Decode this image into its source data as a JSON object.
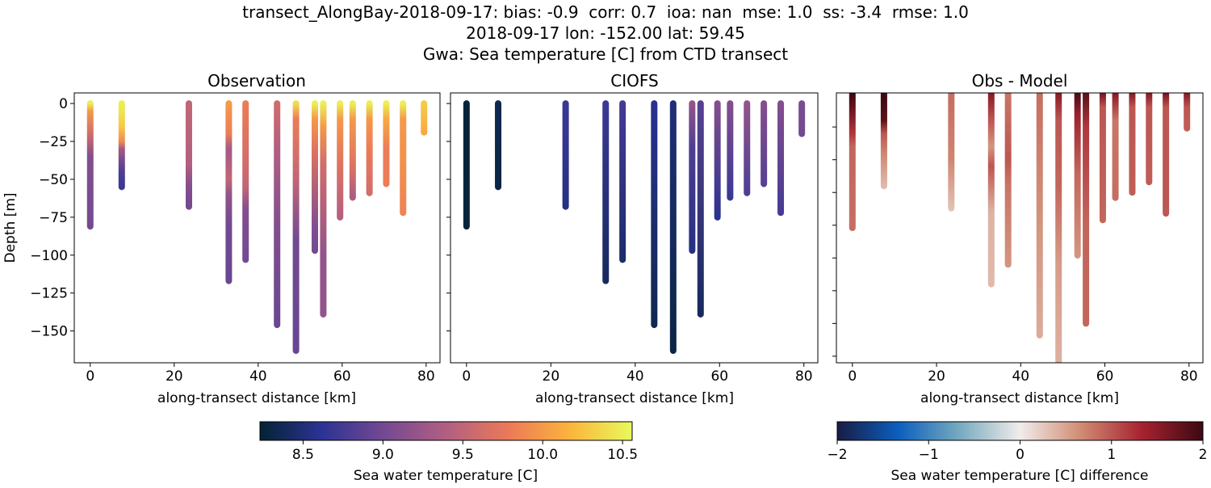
{
  "title_lines": [
    "transect_AlongBay-2018-09-17: bias: -0.9  corr: 0.7  ioa: nan  mse: 1.0  ss: -3.4  rmse: 1.0",
    "2018-09-17 lon: -152.00 lat: 59.45",
    "Gwa: Sea temperature [C] from CTD transect"
  ],
  "chart_data": [
    {
      "type": "scatter",
      "title": "Observation",
      "xlabel": "along-transect distance [km]",
      "ylabel": "Depth [m]",
      "xlim": [
        -3.8,
        83.3
      ],
      "ylim": [
        -171,
        7
      ],
      "xticks": [
        0,
        20,
        40,
        60,
        80
      ],
      "yticks": [
        0,
        -25,
        -50,
        -75,
        -100,
        -125,
        -150
      ],
      "colormap": "thermal",
      "clim": [
        8.23,
        10.56
      ],
      "casts": [
        {
          "x": 0,
          "profile": [
            [
              0,
              10.5
            ],
            [
              -5,
              10.0
            ],
            [
              -20,
              9.6
            ],
            [
              -35,
              9.1
            ],
            [
              -81,
              9.0
            ]
          ]
        },
        {
          "x": 7.5,
          "profile": [
            [
              0,
              10.5
            ],
            [
              -15,
              10.3
            ],
            [
              -25,
              9.9
            ],
            [
              -30,
              9.3
            ],
            [
              -45,
              8.8
            ],
            [
              -55,
              8.7
            ]
          ]
        },
        {
          "x": 23.5,
          "profile": [
            [
              0,
              9.5
            ],
            [
              -40,
              9.4
            ],
            [
              -55,
              9.1
            ],
            [
              -68,
              9.0
            ]
          ]
        },
        {
          "x": 33,
          "profile": [
            [
              0,
              10.0
            ],
            [
              -20,
              9.8
            ],
            [
              -30,
              9.3
            ],
            [
              -50,
              9.5
            ],
            [
              -60,
              9.2
            ],
            [
              -80,
              9.0
            ],
            [
              -117,
              8.95
            ]
          ]
        },
        {
          "x": 37,
          "profile": [
            [
              0,
              9.8
            ],
            [
              -40,
              9.6
            ],
            [
              -55,
              9.5
            ],
            [
              -70,
              9.1
            ],
            [
              -103,
              9.0
            ]
          ]
        },
        {
          "x": 44.5,
          "profile": [
            [
              0,
              9.6
            ],
            [
              -30,
              9.4
            ],
            [
              -80,
              9.1
            ],
            [
              -146,
              8.95
            ]
          ]
        },
        {
          "x": 49,
          "profile": [
            [
              0,
              10.4
            ],
            [
              -10,
              9.8
            ],
            [
              -50,
              9.5
            ],
            [
              -90,
              9.0
            ],
            [
              -163,
              8.95
            ]
          ]
        },
        {
          "x": 53.5,
          "profile": [
            [
              0,
              10.5
            ],
            [
              -10,
              10.0
            ],
            [
              -30,
              9.7
            ],
            [
              -80,
              9.1
            ],
            [
              -97,
              9.0
            ]
          ]
        },
        {
          "x": 55.5,
          "profile": [
            [
              0,
              10.5
            ],
            [
              -15,
              10.0
            ],
            [
              -40,
              9.6
            ],
            [
              -100,
              9.2
            ],
            [
              -139,
              9.2
            ]
          ]
        },
        {
          "x": 59.5,
          "profile": [
            [
              0,
              10.5
            ],
            [
              -10,
              10.0
            ],
            [
              -40,
              9.7
            ],
            [
              -75,
              9.4
            ]
          ]
        },
        {
          "x": 62.5,
          "profile": [
            [
              0,
              10.5
            ],
            [
              -10,
              10.0
            ],
            [
              -40,
              9.7
            ],
            [
              -62,
              9.35
            ]
          ]
        },
        {
          "x": 66.5,
          "profile": [
            [
              0,
              10.5
            ],
            [
              -10,
              10.0
            ],
            [
              -30,
              9.8
            ],
            [
              -59,
              9.6
            ]
          ]
        },
        {
          "x": 70.5,
          "profile": [
            [
              0,
              10.5
            ],
            [
              -10,
              10.1
            ],
            [
              -30,
              9.8
            ],
            [
              -53,
              9.8
            ]
          ]
        },
        {
          "x": 74.5,
          "profile": [
            [
              0,
              10.5
            ],
            [
              -10,
              10.0
            ],
            [
              -72,
              9.85
            ]
          ]
        },
        {
          "x": 79.5,
          "profile": [
            [
              0,
              10.3
            ],
            [
              -19,
              10.1
            ]
          ]
        }
      ]
    },
    {
      "type": "scatter",
      "title": "CIOFS",
      "xlabel": "along-transect distance [km]",
      "xlim": [
        -3.8,
        83.3
      ],
      "ylim": [
        -171,
        7
      ],
      "xticks": [
        0,
        20,
        40,
        60,
        80
      ],
      "yticks": [
        0,
        -25,
        -50,
        -75,
        -100,
        -125,
        -150
      ],
      "colormap": "thermal",
      "clim": [
        8.23,
        10.56
      ],
      "casts": [
        {
          "x": 0,
          "profile": [
            [
              0,
              8.25
            ],
            [
              -81,
              8.25
            ]
          ]
        },
        {
          "x": 7.5,
          "profile": [
            [
              0,
              8.35
            ],
            [
              -55,
              8.3
            ]
          ]
        },
        {
          "x": 23.5,
          "profile": [
            [
              0,
              8.7
            ],
            [
              -68,
              8.55
            ]
          ]
        },
        {
          "x": 33,
          "profile": [
            [
              0,
              8.7
            ],
            [
              -117,
              8.4
            ]
          ]
        },
        {
          "x": 37,
          "profile": [
            [
              0,
              8.75
            ],
            [
              -103,
              8.45
            ]
          ]
        },
        {
          "x": 44.5,
          "profile": [
            [
              0,
              8.6
            ],
            [
              -146,
              8.35
            ]
          ]
        },
        {
          "x": 49,
          "profile": [
            [
              0,
              8.5
            ],
            [
              -163,
              8.3
            ]
          ]
        },
        {
          "x": 53.5,
          "profile": [
            [
              0,
              9.2
            ],
            [
              -30,
              8.8
            ],
            [
              -97,
              8.55
            ]
          ]
        },
        {
          "x": 55.5,
          "profile": [
            [
              0,
              8.85
            ],
            [
              -139,
              8.4
            ]
          ]
        },
        {
          "x": 59.5,
          "profile": [
            [
              0,
              9.1
            ],
            [
              -75,
              8.6
            ]
          ]
        },
        {
          "x": 62.5,
          "profile": [
            [
              0,
              9.1
            ],
            [
              -62,
              8.7
            ]
          ]
        },
        {
          "x": 66.5,
          "profile": [
            [
              0,
              9.2
            ],
            [
              -59,
              8.8
            ]
          ]
        },
        {
          "x": 70.5,
          "profile": [
            [
              0,
              9.1
            ],
            [
              -53,
              8.85
            ]
          ]
        },
        {
          "x": 74.5,
          "profile": [
            [
              0,
              9.1
            ],
            [
              -72,
              8.75
            ]
          ]
        },
        {
          "x": 79.5,
          "profile": [
            [
              0,
              9.05
            ],
            [
              -20,
              9.0
            ]
          ]
        }
      ]
    },
    {
      "type": "scatter",
      "title": "Obs - Model",
      "xlabel": "along-transect distance [km]",
      "xlim": [
        -3.8,
        83.3
      ],
      "ylim": [
        -205,
        1
      ],
      "xticks": [
        0,
        20,
        40,
        60,
        80
      ],
      "yticks": [
        -25,
        -50,
        -75,
        -100,
        -125,
        -150,
        -175,
        -200
      ],
      "colormap": "balance",
      "clim": [
        -2,
        2
      ],
      "casts": [
        {
          "x": 0,
          "profile": [
            [
              0,
              2.0
            ],
            [
              -15,
              1.6
            ],
            [
              -30,
              1.2
            ],
            [
              -40,
              0.9
            ],
            [
              -102,
              0.85
            ]
          ]
        },
        {
          "x": 7.5,
          "profile": [
            [
              0,
              2.0
            ],
            [
              -20,
              1.8
            ],
            [
              -30,
              1.0
            ],
            [
              -45,
              0.7
            ],
            [
              -70,
              0.35
            ]
          ]
        },
        {
          "x": 23.5,
          "profile": [
            [
              0,
              0.85
            ],
            [
              -50,
              0.7
            ],
            [
              -87,
              0.3
            ]
          ]
        },
        {
          "x": 33,
          "profile": [
            [
              0,
              1.5
            ],
            [
              -20,
              1.0
            ],
            [
              -40,
              0.6
            ],
            [
              -55,
              1.0
            ],
            [
              -90,
              0.4
            ],
            [
              -145,
              0.35
            ]
          ]
        },
        {
          "x": 37,
          "profile": [
            [
              0,
              0.8
            ],
            [
              -50,
              1.0
            ],
            [
              -70,
              0.8
            ],
            [
              -130,
              0.6
            ]
          ]
        },
        {
          "x": 44.5,
          "profile": [
            [
              0,
              0.85
            ],
            [
              -100,
              0.6
            ],
            [
              -184,
              0.45
            ]
          ]
        },
        {
          "x": 49,
          "profile": [
            [
              0,
              1.5
            ],
            [
              -20,
              1.0
            ],
            [
              -70,
              0.9
            ],
            [
              -130,
              0.55
            ],
            [
              -210,
              0.4
            ]
          ]
        },
        {
          "x": 53.5,
          "profile": [
            [
              0,
              1.9
            ],
            [
              -15,
              1.4
            ],
            [
              -60,
              0.9
            ],
            [
              -123,
              0.6
            ]
          ]
        },
        {
          "x": 55.5,
          "profile": [
            [
              0,
              1.8
            ],
            [
              -25,
              1.2
            ],
            [
              -100,
              0.9
            ],
            [
              -175,
              0.9
            ]
          ]
        },
        {
          "x": 59.5,
          "profile": [
            [
              0,
              1.6
            ],
            [
              -10,
              1.0
            ],
            [
              -96,
              0.9
            ]
          ]
        },
        {
          "x": 62.5,
          "profile": [
            [
              0,
              1.5
            ],
            [
              -20,
              0.8
            ],
            [
              -79,
              0.85
            ]
          ]
        },
        {
          "x": 66.5,
          "profile": [
            [
              0,
              1.5
            ],
            [
              -10,
              1.0
            ],
            [
              -75,
              0.95
            ]
          ]
        },
        {
          "x": 70.5,
          "profile": [
            [
              0,
              1.5
            ],
            [
              -10,
              1.0
            ],
            [
              -67,
              0.95
            ]
          ]
        },
        {
          "x": 74.5,
          "profile": [
            [
              0,
              1.6
            ],
            [
              -10,
              1.0
            ],
            [
              -91,
              1.0
            ]
          ]
        },
        {
          "x": 79.5,
          "profile": [
            [
              0,
              1.5
            ],
            [
              -10,
              1.0
            ],
            [
              -26,
              0.95
            ]
          ]
        }
      ]
    }
  ],
  "colorbars": [
    {
      "label": "Sea water temperature [C]",
      "colormap": "thermal",
      "clim": [
        8.23,
        10.56
      ],
      "ticks": [
        "8.5",
        "9.0",
        "9.5",
        "10.0",
        "10.5"
      ],
      "colors": [
        "#042333",
        "#2c3395",
        "#744992",
        "#b15f82",
        "#eb7958",
        "#fbb43d",
        "#e8fa5b"
      ]
    },
    {
      "label": "Sea water temperature [C] difference",
      "colormap": "balance",
      "clim": [
        -2,
        2
      ],
      "ticks": [
        "−2",
        "−1",
        "0",
        "1",
        "2"
      ],
      "colors": [
        "#181c43",
        "#0c5ebe",
        "#75aabe",
        "#f1eceb",
        "#d08b73",
        "#a72230",
        "#3c0912"
      ]
    }
  ]
}
